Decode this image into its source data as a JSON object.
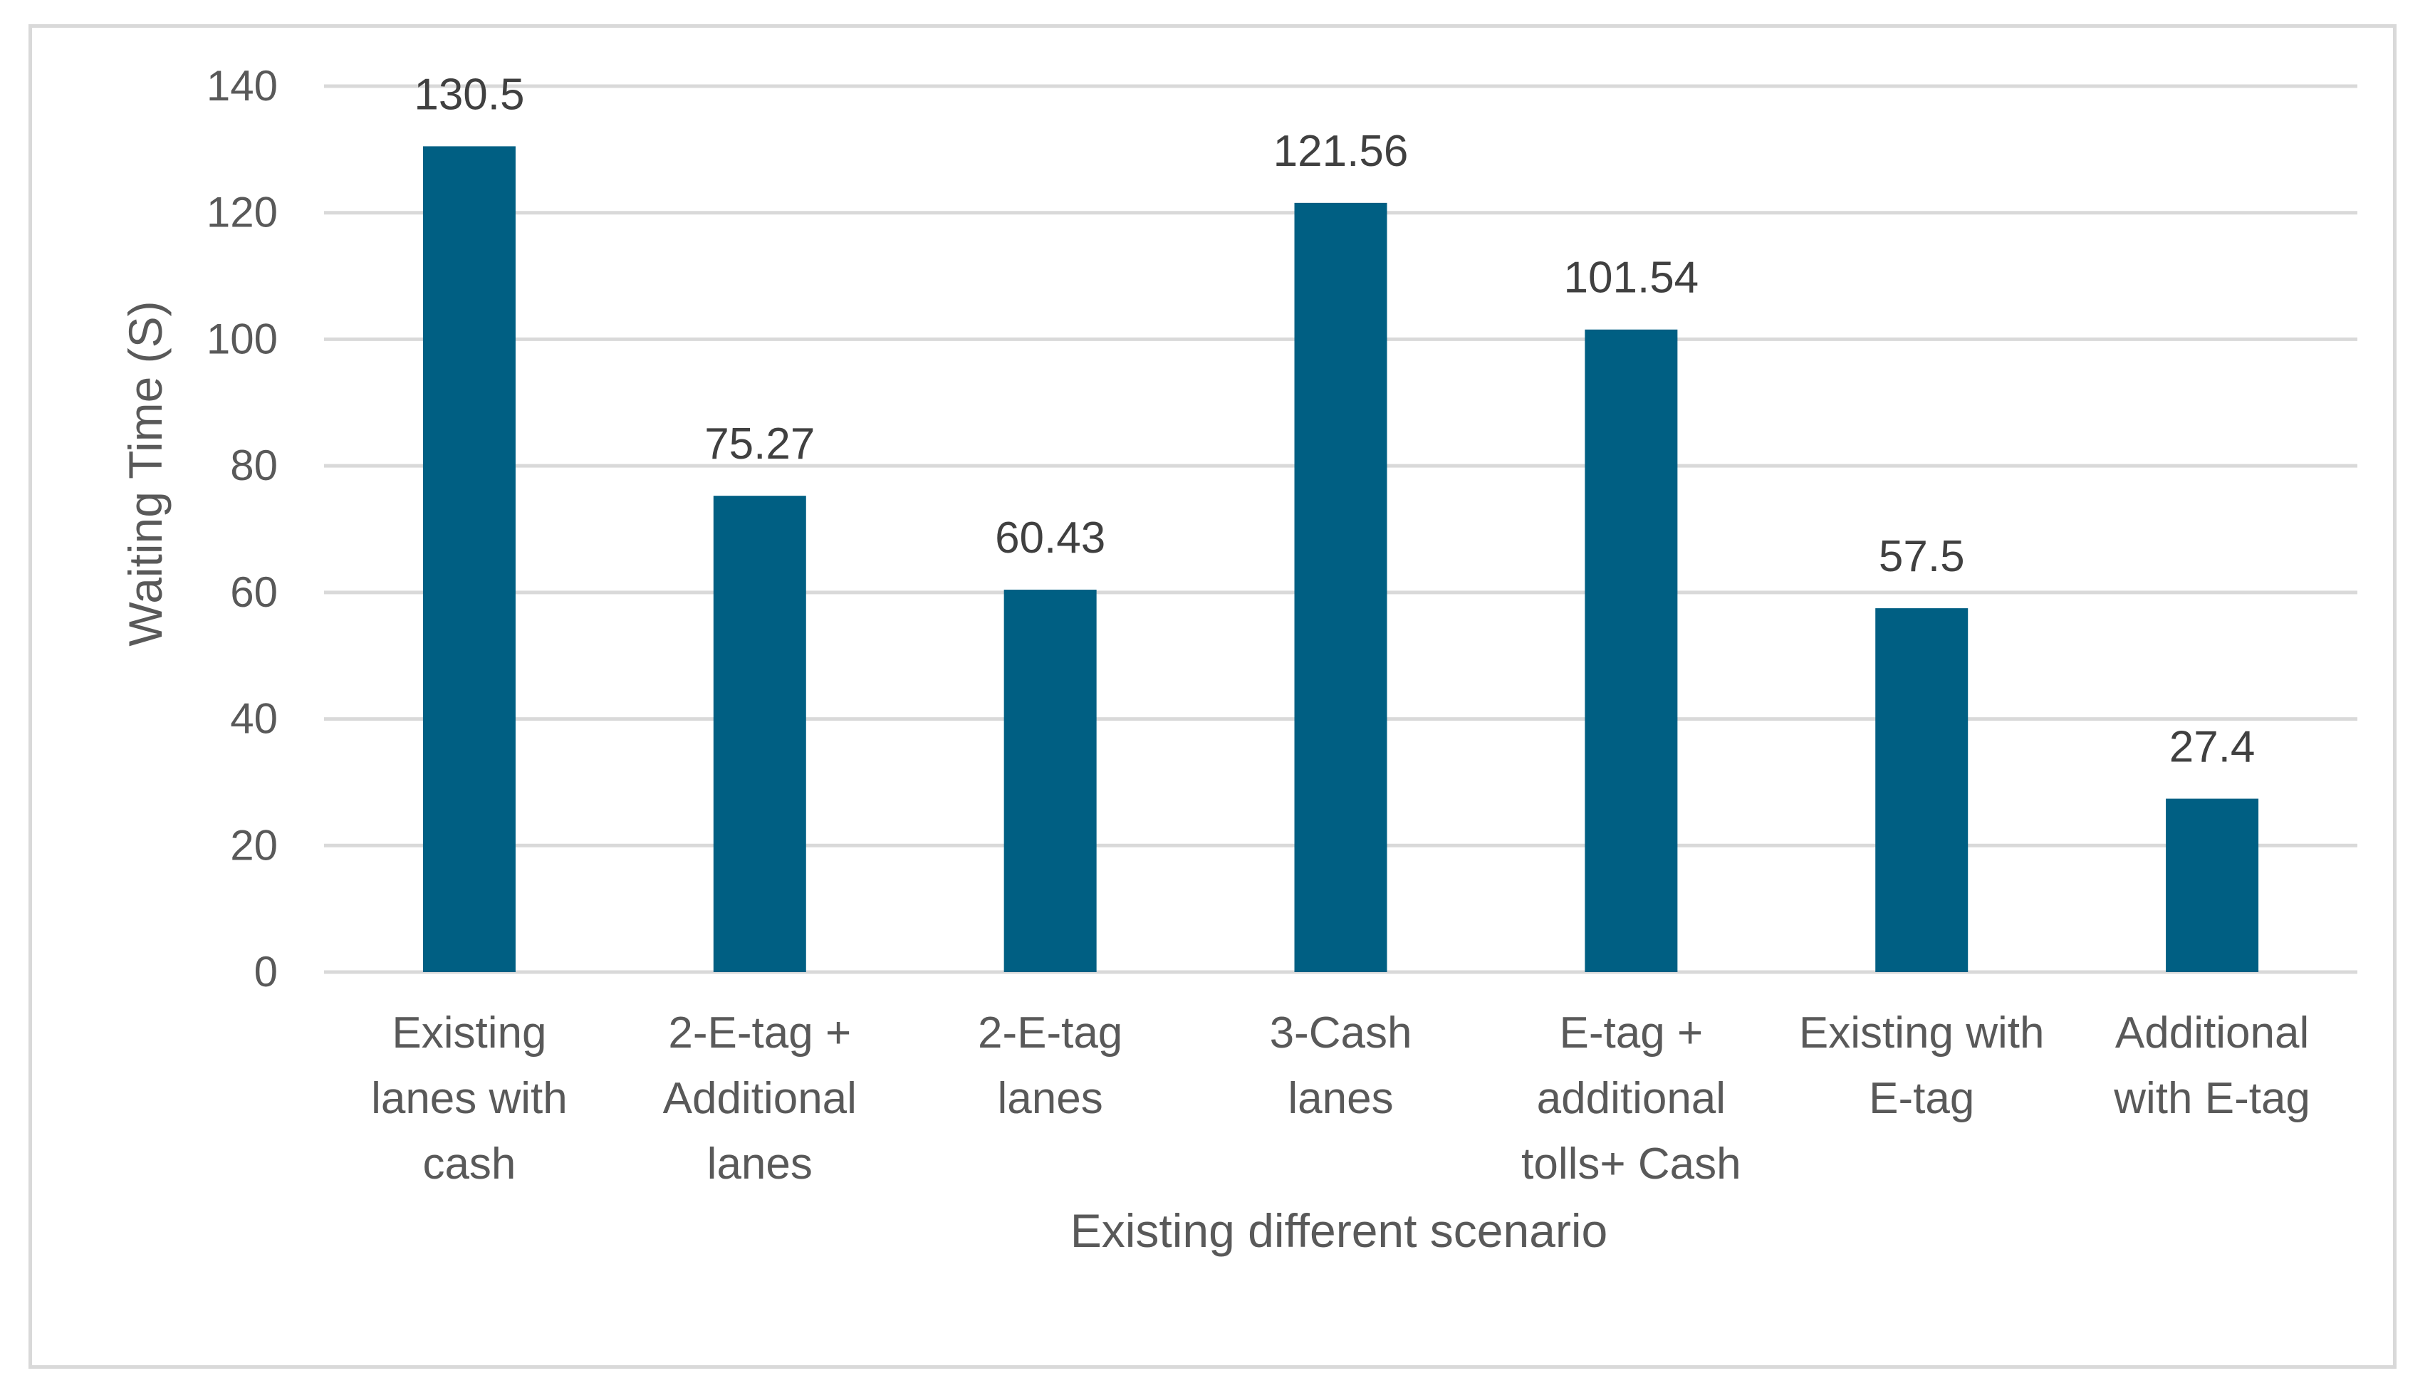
{
  "chart_data": {
    "type": "bar",
    "categories": [
      [
        "Existing",
        "lanes with",
        "cash"
      ],
      [
        "2-E-tag +",
        "Additional",
        "lanes"
      ],
      [
        "2-E-tag",
        "lanes"
      ],
      [
        "3-Cash",
        "lanes"
      ],
      [
        "E-tag +",
        "additional",
        "tolls+ Cash"
      ],
      [
        "Existing with",
        "E-tag"
      ],
      [
        "Additional",
        "with E-tag"
      ]
    ],
    "values": [
      130.5,
      75.27,
      60.43,
      121.56,
      101.54,
      57.5,
      27.4
    ],
    "data_labels": [
      "130.5",
      "75.27",
      "60.43",
      "121.56",
      "101.54",
      "57.5",
      "27.4"
    ],
    "title": "",
    "xlabel": "Existing different scenario",
    "ylabel": "Waiting Time (S)",
    "ylim": [
      0,
      140
    ],
    "yticks": [
      0,
      20,
      40,
      60,
      80,
      100,
      120,
      140
    ],
    "grid": true,
    "legend": "none",
    "bar_color": "#005f83",
    "grid_color": "#d9d9d9"
  }
}
